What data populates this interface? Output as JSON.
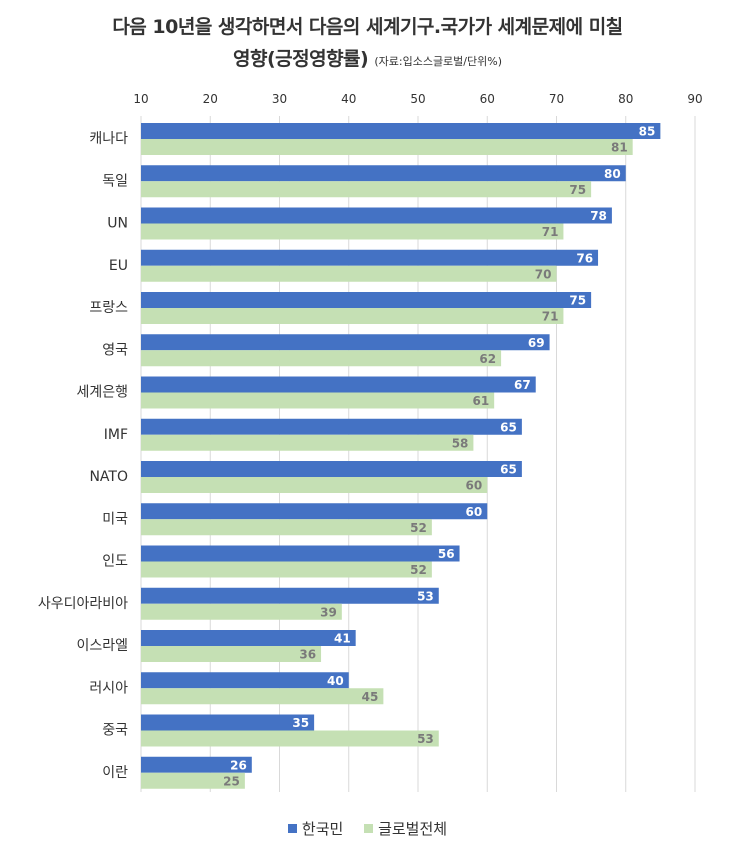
{
  "title": {
    "line1": "다음 10년을 생각하면서 다음의 세계기구.국가가 세계문제에 미칠",
    "line2": "영향(긍정영향률)",
    "source": "(자료:입소스글로벌/단위%)"
  },
  "colors": {
    "korea": "#4472c4",
    "global": "#c5e0b4",
    "grid": "#d9d9d9"
  },
  "legend": {
    "korea_label": "한국민",
    "global_label": "글로벌전체"
  },
  "chart_data": {
    "type": "bar",
    "orientation": "horizontal",
    "title": "다음 10년을 생각하면서 다음의 세계기구.국가가 세계문제에 미칠 영향(긍정영향률)",
    "xlim": [
      10,
      90
    ],
    "ticks": [
      10,
      20,
      30,
      40,
      50,
      60,
      70,
      80,
      90
    ],
    "tick_position": "top",
    "grid": true,
    "legend_position": "bottom",
    "categories": [
      "캐나다",
      "독일",
      "UN",
      "EU",
      "프랑스",
      "영국",
      "세계은행",
      "IMF",
      "NATO",
      "미국",
      "인도",
      "사우디아라비아",
      "이스라엘",
      "러시아",
      "중국",
      "이란"
    ],
    "series": [
      {
        "name": "한국민",
        "values": [
          85,
          80,
          78,
          76,
          75,
          69,
          67,
          65,
          65,
          60,
          56,
          53,
          41,
          40,
          35,
          26
        ]
      },
      {
        "name": "글로벌전체",
        "values": [
          81,
          75,
          71,
          70,
          71,
          62,
          61,
          58,
          60,
          52,
          52,
          39,
          36,
          45,
          53,
          25
        ]
      }
    ]
  }
}
